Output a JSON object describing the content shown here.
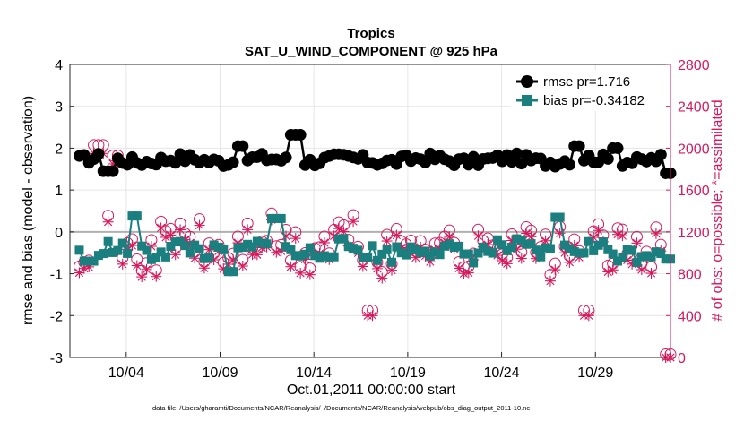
{
  "chart_data": {
    "type": "line",
    "title": "Tropics",
    "subtitle": "SAT_U_WIND_COMPONENT @ 925 hPa",
    "xlabel": "Oct.01,2011 00:00:00 start",
    "ylabel_left": "rmse and bias (model - observation)",
    "ylabel_right": "# of obs: o=possible; *=assimilated",
    "ylim_left": [
      -3,
      4
    ],
    "ylim_right": [
      0,
      2800
    ],
    "xlim_days": [
      1,
      33
    ],
    "yticks_left": [
      "4",
      "3",
      "2",
      "1",
      "0",
      "-1",
      "-2",
      "-3"
    ],
    "yticks_right": [
      "2800",
      "2400",
      "2000",
      "1600",
      "1200",
      "800",
      "400",
      "0"
    ],
    "xticks": [
      {
        "day": 4,
        "label": "10/04"
      },
      {
        "day": 9,
        "label": "10/09"
      },
      {
        "day": 14,
        "label": "10/14"
      },
      {
        "day": 19,
        "label": "10/19"
      },
      {
        "day": 24,
        "label": "10/24"
      },
      {
        "day": 29,
        "label": "10/29"
      }
    ],
    "grid": true,
    "legend_position": "top-right",
    "series": [
      {
        "name": "rmse pr=1.716",
        "color": "#000000",
        "marker": "circle",
        "axis": "left",
        "base": 1.72,
        "amp": 0.12,
        "spikes": [
          [
            10,
            2.05
          ],
          [
            13,
            2.32
          ],
          [
            28,
            2.05
          ],
          [
            30,
            2.0
          ],
          [
            3,
            1.45
          ],
          [
            33,
            1.4
          ]
        ]
      },
      {
        "name": "bias pr=-0.34182",
        "color": "#1b7f7f",
        "marker": "square",
        "axis": "left",
        "base": -0.45,
        "amp": 0.22,
        "spikes": [
          [
            4.5,
            0.38
          ],
          [
            12,
            0.32
          ],
          [
            27,
            0.35
          ],
          [
            9.5,
            -0.95
          ],
          [
            2,
            -0.7
          ],
          [
            33,
            -0.65
          ]
        ]
      },
      {
        "name": "possible",
        "color": "#d6195c",
        "marker": "o",
        "axis": "right",
        "base": 1050,
        "amp": 230,
        "spikes": [
          [
            2.5,
            2000
          ],
          [
            3.5,
            1900
          ],
          [
            17,
            420
          ],
          [
            28.5,
            420
          ],
          [
            33,
            0
          ]
        ]
      },
      {
        "name": "assimilated",
        "color": "#d6195c",
        "marker": "*",
        "axis": "right",
        "base": 1020,
        "amp": 230,
        "spikes": [
          [
            2.5,
            1950
          ],
          [
            3.5,
            1850
          ],
          [
            17,
            400
          ],
          [
            28.5,
            400
          ],
          [
            33,
            0
          ]
        ]
      }
    ],
    "legend": [
      {
        "label": "rmse pr=1.716",
        "color": "#000000",
        "marker": "circle"
      },
      {
        "label": "bias pr=-0.34182",
        "color": "#1b7f7f",
        "marker": "square"
      }
    ],
    "footnote": "data file: /Users/gharamti/Documents/NCAR/Reanalysis/~/Documents/NCAR/Reanalysis/webpub/obs_diag_output_2011-10.nc"
  }
}
